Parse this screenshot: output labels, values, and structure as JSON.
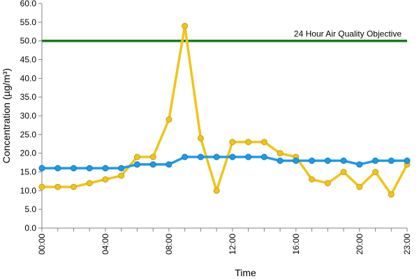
{
  "chart_data": {
    "type": "line",
    "title": "",
    "xlabel": "Time",
    "ylabel": "Concentration (µg/m³)",
    "ylim": [
      0,
      60
    ],
    "y_ticks": [
      "0.0",
      "5.0",
      "10.0",
      "15.0",
      "20.0",
      "25.0",
      "30.0",
      "35.0",
      "40.0",
      "45.0",
      "50.0",
      "55.0",
      "60.0"
    ],
    "y_tick_values": [
      0,
      5,
      10,
      15,
      20,
      25,
      30,
      35,
      40,
      45,
      50,
      55,
      60
    ],
    "x_hours": [
      0,
      1,
      2,
      3,
      4,
      5,
      6,
      7,
      8,
      9,
      10,
      11,
      12,
      13,
      14,
      15,
      16,
      17,
      18,
      19,
      20,
      21,
      22,
      23
    ],
    "x_ticks": [
      "00:00",
      "04:00",
      "08:00",
      "12:00",
      "16:00",
      "20:00",
      "23:00"
    ],
    "x_tick_hours": [
      0,
      4,
      8,
      12,
      16,
      20,
      23
    ],
    "grid": false,
    "legend": "none",
    "series": [
      {
        "color": "#f0c419",
        "values": [
          11,
          11,
          11,
          12,
          13,
          14,
          19,
          19,
          29,
          54,
          24,
          10,
          23,
          23,
          23,
          20,
          19,
          13,
          12,
          15,
          11,
          15,
          9,
          17
        ]
      },
      {
        "color": "#1e9be8",
        "values": [
          16,
          16,
          16,
          16,
          16,
          16,
          17,
          17,
          17,
          19,
          19,
          19,
          19,
          19,
          19,
          18,
          18,
          18,
          18,
          18,
          17,
          18,
          18,
          18
        ]
      }
    ],
    "reference_line": {
      "label": "24 Hour Air Quality Objective",
      "value": 50,
      "color": "#1a7a1a"
    }
  }
}
